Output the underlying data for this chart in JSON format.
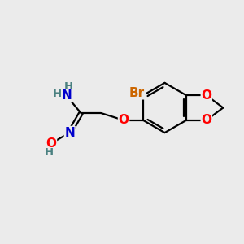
{
  "bg_color": "#ebebeb",
  "bond_color": "#000000",
  "bond_width": 1.6,
  "atom_colors": {
    "C": "#000000",
    "H": "#4a8080",
    "N": "#0000cc",
    "O": "#ff0000",
    "Br": "#cc6600"
  },
  "font_size_atom": 11,
  "font_size_H": 9.5
}
